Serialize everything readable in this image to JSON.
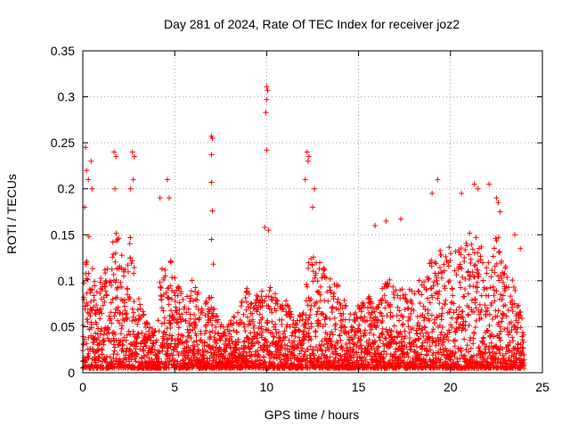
{
  "chart_data": {
    "type": "scatter",
    "title": "Day 281 of 2024, Rate Of TEC Index for receiver joz2",
    "xlabel": "GPS time / hours",
    "ylabel": "ROTI / TECUs",
    "xlim": [
      0,
      25
    ],
    "ylim": [
      0,
      0.35
    ],
    "x_ticks": [
      0,
      5,
      10,
      15,
      20,
      25
    ],
    "x_tick_labels": [
      "0",
      "5",
      "10",
      "15",
      "20",
      "25"
    ],
    "y_ticks": [
      0,
      0.05,
      0.1,
      0.15,
      0.2,
      0.25,
      0.3,
      0.35
    ],
    "y_tick_labels": [
      "0",
      "0.05",
      "0.1",
      "0.15",
      "0.2",
      "0.25",
      "0.3",
      "0.35"
    ],
    "grid": true,
    "marker": "+",
    "series": [
      {
        "name": "ROTI",
        "color": "#ff0000",
        "envelope_hours": [
          0,
          0.2,
          0.5,
          1,
          1.5,
          1.8,
          2.2,
          2.7,
          3,
          3.5,
          4,
          4.3,
          4.7,
          5.2,
          5.7,
          6,
          6.5,
          7,
          7.5,
          8,
          8.5,
          9,
          9.5,
          10,
          10.5,
          11,
          11.5,
          12,
          12.3,
          12.7,
          13,
          13.5,
          14,
          14.5,
          15,
          15.5,
          16,
          16.5,
          17,
          17.5,
          18,
          18.5,
          19,
          19.5,
          20,
          20.5,
          21,
          21.5,
          22,
          22.5,
          23,
          23.5,
          24
        ],
        "envelope_roti": [
          0.06,
          0.18,
          0.11,
          0.1,
          0.12,
          0.17,
          0.12,
          0.15,
          0.08,
          0.05,
          0.04,
          0.12,
          0.13,
          0.09,
          0.08,
          0.1,
          0.07,
          0.08,
          0.05,
          0.05,
          0.07,
          0.09,
          0.08,
          0.1,
          0.08,
          0.08,
          0.06,
          0.06,
          0.12,
          0.13,
          0.12,
          0.1,
          0.09,
          0.06,
          0.07,
          0.08,
          0.07,
          0.1,
          0.09,
          0.09,
          0.09,
          0.1,
          0.12,
          0.13,
          0.14,
          0.13,
          0.15,
          0.14,
          0.12,
          0.15,
          0.12,
          0.09,
          0.05
        ],
        "spikes": [
          {
            "x": 0.1,
            "y": 0.18
          },
          {
            "x": 0.2,
            "y": 0.22
          },
          {
            "x": 0.15,
            "y": 0.245
          },
          {
            "x": 0.3,
            "y": 0.21
          },
          {
            "x": 0.45,
            "y": 0.23
          },
          {
            "x": 0.5,
            "y": 0.2
          },
          {
            "x": 1.7,
            "y": 0.24
          },
          {
            "x": 1.8,
            "y": 0.235
          },
          {
            "x": 1.75,
            "y": 0.2
          },
          {
            "x": 2.7,
            "y": 0.24
          },
          {
            "x": 2.8,
            "y": 0.235
          },
          {
            "x": 2.75,
            "y": 0.21
          },
          {
            "x": 2.6,
            "y": 0.2
          },
          {
            "x": 4.6,
            "y": 0.21
          },
          {
            "x": 4.7,
            "y": 0.19
          },
          {
            "x": 4.2,
            "y": 0.19
          },
          {
            "x": 7.0,
            "y": 0.257
          },
          {
            "x": 7.05,
            "y": 0.255
          },
          {
            "x": 7.0,
            "y": 0.237
          },
          {
            "x": 7.0,
            "y": 0.207
          },
          {
            "x": 7.05,
            "y": 0.176
          },
          {
            "x": 7.0,
            "y": 0.145
          },
          {
            "x": 7.1,
            "y": 0.118
          },
          {
            "x": 10.0,
            "y": 0.311
          },
          {
            "x": 10.05,
            "y": 0.307
          },
          {
            "x": 10.0,
            "y": 0.297
          },
          {
            "x": 9.95,
            "y": 0.283
          },
          {
            "x": 10.0,
            "y": 0.242
          },
          {
            "x": 9.9,
            "y": 0.158
          },
          {
            "x": 10.1,
            "y": 0.155
          },
          {
            "x": 12.2,
            "y": 0.24
          },
          {
            "x": 12.3,
            "y": 0.235
          },
          {
            "x": 12.25,
            "y": 0.23
          },
          {
            "x": 12.1,
            "y": 0.21
          },
          {
            "x": 12.6,
            "y": 0.2
          },
          {
            "x": 12.5,
            "y": 0.18
          },
          {
            "x": 16.5,
            "y": 0.165
          },
          {
            "x": 17.3,
            "y": 0.167
          },
          {
            "x": 15.9,
            "y": 0.16
          },
          {
            "x": 19.0,
            "y": 0.195
          },
          {
            "x": 19.3,
            "y": 0.21
          },
          {
            "x": 20.6,
            "y": 0.195
          },
          {
            "x": 21.3,
            "y": 0.205
          },
          {
            "x": 21.5,
            "y": 0.2
          },
          {
            "x": 22.1,
            "y": 0.205
          },
          {
            "x": 22.5,
            "y": 0.19
          },
          {
            "x": 22.6,
            "y": 0.185
          },
          {
            "x": 22.7,
            "y": 0.175
          },
          {
            "x": 23.5,
            "y": 0.15
          },
          {
            "x": 23.8,
            "y": 0.135
          }
        ]
      }
    ]
  }
}
